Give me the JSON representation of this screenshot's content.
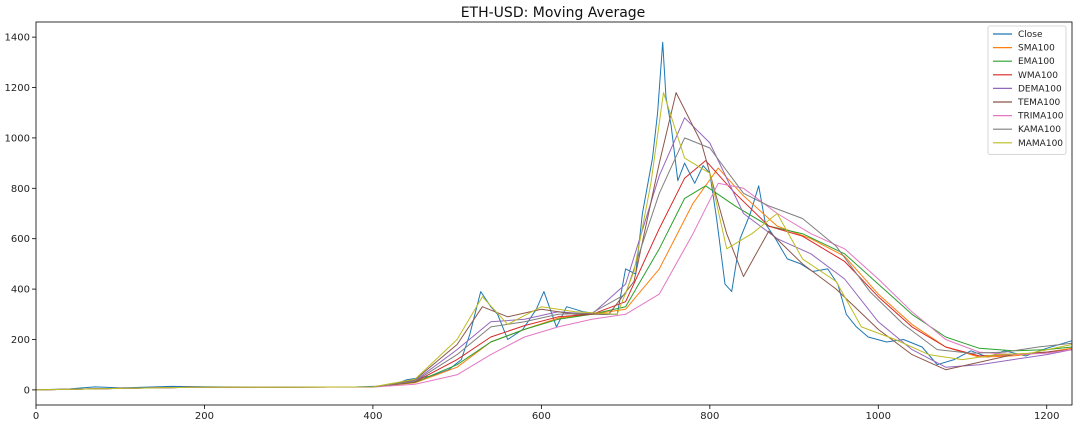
{
  "chart_data": {
    "type": "line",
    "title": "ETH-USD: Moving Average",
    "xlabel": "",
    "ylabel": "",
    "xlim": [
      0,
      1230
    ],
    "ylim": [
      -60,
      1460
    ],
    "x_ticks": [
      0,
      200,
      400,
      600,
      800,
      1000,
      1200
    ],
    "y_ticks": [
      0,
      200,
      400,
      600,
      800,
      1000,
      1200,
      1400
    ],
    "grid": false,
    "legend_position": "top-right",
    "series": [
      {
        "name": "Close",
        "color": "#1f77b4",
        "points": [
          [
            0,
            0
          ],
          [
            40,
            4
          ],
          [
            70,
            12
          ],
          [
            100,
            8
          ],
          [
            160,
            14
          ],
          [
            220,
            12
          ],
          [
            300,
            11
          ],
          [
            380,
            12
          ],
          [
            420,
            16
          ],
          [
            440,
            40
          ],
          [
            470,
            55
          ],
          [
            490,
            80
          ],
          [
            505,
            120
          ],
          [
            515,
            220
          ],
          [
            528,
            390
          ],
          [
            540,
            330
          ],
          [
            548,
            300
          ],
          [
            560,
            200
          ],
          [
            578,
            240
          ],
          [
            594,
            320
          ],
          [
            603,
            390
          ],
          [
            618,
            250
          ],
          [
            630,
            330
          ],
          [
            650,
            310
          ],
          [
            670,
            300
          ],
          [
            690,
            300
          ],
          [
            700,
            480
          ],
          [
            712,
            460
          ],
          [
            720,
            700
          ],
          [
            732,
            920
          ],
          [
            738,
            1100
          ],
          [
            744,
            1380
          ],
          [
            748,
            1160
          ],
          [
            754,
            1050
          ],
          [
            762,
            830
          ],
          [
            770,
            900
          ],
          [
            782,
            820
          ],
          [
            792,
            890
          ],
          [
            800,
            860
          ],
          [
            808,
            680
          ],
          [
            818,
            420
          ],
          [
            826,
            390
          ],
          [
            836,
            600
          ],
          [
            848,
            700
          ],
          [
            858,
            810
          ],
          [
            866,
            660
          ],
          [
            878,
            600
          ],
          [
            892,
            520
          ],
          [
            908,
            500
          ],
          [
            922,
            470
          ],
          [
            940,
            480
          ],
          [
            952,
            420
          ],
          [
            962,
            300
          ],
          [
            974,
            250
          ],
          [
            988,
            210
          ],
          [
            1010,
            190
          ],
          [
            1030,
            200
          ],
          [
            1052,
            170
          ],
          [
            1070,
            100
          ],
          [
            1090,
            120
          ],
          [
            1110,
            155
          ],
          [
            1130,
            130
          ],
          [
            1150,
            155
          ],
          [
            1175,
            135
          ],
          [
            1200,
            165
          ],
          [
            1230,
            195
          ]
        ]
      },
      {
        "name": "SMA100",
        "color": "#ff7f0e",
        "points": [
          [
            0,
            0
          ],
          [
            100,
            6
          ],
          [
            200,
            11
          ],
          [
            300,
            11
          ],
          [
            400,
            12
          ],
          [
            450,
            28
          ],
          [
            500,
            90
          ],
          [
            540,
            190
          ],
          [
            580,
            240
          ],
          [
            620,
            285
          ],
          [
            660,
            300
          ],
          [
            700,
            320
          ],
          [
            740,
            480
          ],
          [
            780,
            740
          ],
          [
            810,
            880
          ],
          [
            840,
            770
          ],
          [
            880,
            650
          ],
          [
            920,
            600
          ],
          [
            960,
            530
          ],
          [
            1000,
            380
          ],
          [
            1040,
            260
          ],
          [
            1080,
            170
          ],
          [
            1120,
            130
          ],
          [
            1160,
            135
          ],
          [
            1200,
            150
          ],
          [
            1230,
            165
          ]
        ]
      },
      {
        "name": "EMA100",
        "color": "#2ca02c",
        "points": [
          [
            0,
            0
          ],
          [
            100,
            6
          ],
          [
            200,
            11
          ],
          [
            300,
            11
          ],
          [
            400,
            12
          ],
          [
            450,
            30
          ],
          [
            500,
            100
          ],
          [
            540,
            190
          ],
          [
            580,
            240
          ],
          [
            620,
            280
          ],
          [
            660,
            300
          ],
          [
            700,
            330
          ],
          [
            740,
            560
          ],
          [
            770,
            760
          ],
          [
            795,
            810
          ],
          [
            830,
            730
          ],
          [
            870,
            650
          ],
          [
            910,
            620
          ],
          [
            960,
            540
          ],
          [
            1000,
            420
          ],
          [
            1040,
            300
          ],
          [
            1080,
            210
          ],
          [
            1120,
            165
          ],
          [
            1160,
            155
          ],
          [
            1200,
            160
          ],
          [
            1230,
            170
          ]
        ]
      },
      {
        "name": "WMA100",
        "color": "#d62728",
        "points": [
          [
            0,
            0
          ],
          [
            100,
            6
          ],
          [
            200,
            11
          ],
          [
            300,
            11
          ],
          [
            400,
            12
          ],
          [
            450,
            32
          ],
          [
            500,
            120
          ],
          [
            540,
            210
          ],
          [
            580,
            255
          ],
          [
            620,
            290
          ],
          [
            660,
            300
          ],
          [
            700,
            350
          ],
          [
            740,
            640
          ],
          [
            770,
            840
          ],
          [
            795,
            910
          ],
          [
            830,
            780
          ],
          [
            870,
            650
          ],
          [
            910,
            610
          ],
          [
            960,
            510
          ],
          [
            1000,
            370
          ],
          [
            1040,
            250
          ],
          [
            1080,
            170
          ],
          [
            1120,
            135
          ],
          [
            1160,
            140
          ],
          [
            1200,
            150
          ],
          [
            1230,
            160
          ]
        ]
      },
      {
        "name": "DEMA100",
        "color": "#9467bd",
        "points": [
          [
            0,
            0
          ],
          [
            100,
            6
          ],
          [
            200,
            11
          ],
          [
            300,
            11
          ],
          [
            400,
            12
          ],
          [
            450,
            36
          ],
          [
            500,
            160
          ],
          [
            540,
            270
          ],
          [
            580,
            280
          ],
          [
            620,
            310
          ],
          [
            660,
            300
          ],
          [
            700,
            420
          ],
          [
            740,
            850
          ],
          [
            770,
            1080
          ],
          [
            800,
            980
          ],
          [
            840,
            700
          ],
          [
            880,
            600
          ],
          [
            920,
            540
          ],
          [
            960,
            440
          ],
          [
            1000,
            270
          ],
          [
            1040,
            160
          ],
          [
            1080,
            90
          ],
          [
            1120,
            100
          ],
          [
            1160,
            120
          ],
          [
            1200,
            140
          ],
          [
            1230,
            160
          ]
        ]
      },
      {
        "name": "TEMA100",
        "color": "#8c564b",
        "points": [
          [
            0,
            0
          ],
          [
            100,
            6
          ],
          [
            200,
            11
          ],
          [
            300,
            11
          ],
          [
            400,
            12
          ],
          [
            450,
            40
          ],
          [
            500,
            180
          ],
          [
            530,
            330
          ],
          [
            560,
            290
          ],
          [
            600,
            320
          ],
          [
            640,
            300
          ],
          [
            680,
            300
          ],
          [
            710,
            430
          ],
          [
            740,
            900
          ],
          [
            760,
            1180
          ],
          [
            790,
            980
          ],
          [
            820,
            620
          ],
          [
            840,
            450
          ],
          [
            870,
            630
          ],
          [
            910,
            500
          ],
          [
            950,
            400
          ],
          [
            1000,
            240
          ],
          [
            1040,
            140
          ],
          [
            1080,
            80
          ],
          [
            1120,
            110
          ],
          [
            1160,
            140
          ],
          [
            1200,
            150
          ],
          [
            1230,
            160
          ]
        ]
      },
      {
        "name": "TRIMA100",
        "color": "#e377c2",
        "points": [
          [
            0,
            0
          ],
          [
            100,
            6
          ],
          [
            200,
            11
          ],
          [
            300,
            11
          ],
          [
            400,
            11
          ],
          [
            450,
            22
          ],
          [
            500,
            60
          ],
          [
            540,
            140
          ],
          [
            580,
            210
          ],
          [
            620,
            250
          ],
          [
            660,
            280
          ],
          [
            700,
            300
          ],
          [
            740,
            380
          ],
          [
            780,
            620
          ],
          [
            810,
            820
          ],
          [
            840,
            800
          ],
          [
            880,
            700
          ],
          [
            920,
            620
          ],
          [
            960,
            560
          ],
          [
            1000,
            440
          ],
          [
            1040,
            310
          ],
          [
            1080,
            200
          ],
          [
            1120,
            150
          ],
          [
            1160,
            140
          ],
          [
            1200,
            145
          ],
          [
            1230,
            160
          ]
        ]
      },
      {
        "name": "KAMA100",
        "color": "#7f7f7f",
        "points": [
          [
            0,
            0
          ],
          [
            100,
            6
          ],
          [
            200,
            11
          ],
          [
            300,
            11
          ],
          [
            400,
            12
          ],
          [
            450,
            34
          ],
          [
            500,
            140
          ],
          [
            540,
            250
          ],
          [
            580,
            270
          ],
          [
            620,
            300
          ],
          [
            660,
            305
          ],
          [
            700,
            380
          ],
          [
            740,
            780
          ],
          [
            770,
            1000
          ],
          [
            800,
            960
          ],
          [
            840,
            780
          ],
          [
            870,
            730
          ],
          [
            910,
            680
          ],
          [
            950,
            570
          ],
          [
            990,
            390
          ],
          [
            1030,
            260
          ],
          [
            1070,
            160
          ],
          [
            1110,
            145
          ],
          [
            1150,
            150
          ],
          [
            1190,
            170
          ],
          [
            1230,
            185
          ]
        ]
      },
      {
        "name": "MAMA100",
        "color": "#bcbd22",
        "points": [
          [
            0,
            0
          ],
          [
            100,
            6
          ],
          [
            200,
            11
          ],
          [
            300,
            11
          ],
          [
            400,
            12
          ],
          [
            450,
            42
          ],
          [
            500,
            200
          ],
          [
            530,
            370
          ],
          [
            560,
            260
          ],
          [
            600,
            330
          ],
          [
            640,
            310
          ],
          [
            690,
            300
          ],
          [
            710,
            470
          ],
          [
            730,
            820
          ],
          [
            745,
            1180
          ],
          [
            770,
            920
          ],
          [
            800,
            860
          ],
          [
            820,
            560
          ],
          [
            850,
            620
          ],
          [
            880,
            700
          ],
          [
            910,
            520
          ],
          [
            950,
            430
          ],
          [
            980,
            250
          ],
          [
            1020,
            200
          ],
          [
            1060,
            140
          ],
          [
            1100,
            120
          ],
          [
            1140,
            140
          ],
          [
            1180,
            145
          ],
          [
            1230,
            180
          ]
        ]
      }
    ]
  }
}
